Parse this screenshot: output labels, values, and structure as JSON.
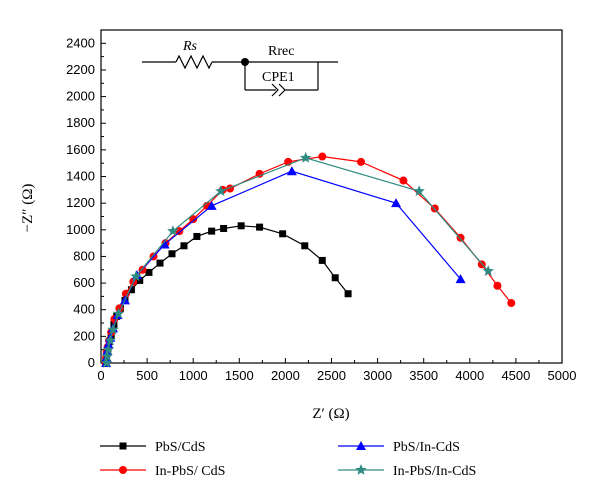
{
  "chart_data": {
    "type": "scatter",
    "xlabel": "Z′ (Ω)",
    "ylabel": "−Z″ (Ω)",
    "xlim": [
      0,
      5000
    ],
    "ylim": [
      0,
      2500
    ],
    "x_ticks": [
      0,
      500,
      1000,
      1500,
      2000,
      2500,
      3000,
      3500,
      4000,
      4500,
      5000
    ],
    "y_ticks": [
      0,
      200,
      400,
      600,
      800,
      1000,
      1200,
      1400,
      1600,
      1800,
      2000,
      2200,
      2400
    ],
    "grid": false,
    "legend_position": "bottom",
    "series": [
      {
        "name": "PbS/CdS",
        "color": "#000000",
        "marker": "square",
        "points": [
          [
            50,
            0
          ],
          [
            58,
            35
          ],
          [
            65,
            70
          ],
          [
            75,
            110
          ],
          [
            90,
            160
          ],
          [
            110,
            210
          ],
          [
            140,
            290
          ],
          [
            170,
            350
          ],
          [
            210,
            410
          ],
          [
            260,
            470
          ],
          [
            330,
            550
          ],
          [
            420,
            620
          ],
          [
            520,
            680
          ],
          [
            640,
            750
          ],
          [
            770,
            820
          ],
          [
            900,
            880
          ],
          [
            1040,
            950
          ],
          [
            1200,
            990
          ],
          [
            1330,
            1010
          ],
          [
            1520,
            1030
          ],
          [
            1720,
            1020
          ],
          [
            1970,
            970
          ],
          [
            2210,
            880
          ],
          [
            2400,
            770
          ],
          [
            2540,
            640
          ],
          [
            2680,
            520
          ]
        ]
      },
      {
        "name": "In-PbS/ CdS",
        "color": "#ff0000",
        "marker": "circle",
        "points": [
          [
            50,
            0
          ],
          [
            55,
            40
          ],
          [
            62,
            80
          ],
          [
            72,
            120
          ],
          [
            88,
            170
          ],
          [
            110,
            230
          ],
          [
            145,
            330
          ],
          [
            200,
            410
          ],
          [
            270,
            520
          ],
          [
            350,
            610
          ],
          [
            450,
            700
          ],
          [
            570,
            800
          ],
          [
            700,
            900
          ],
          [
            850,
            990
          ],
          [
            1000,
            1080
          ],
          [
            1150,
            1180
          ],
          [
            1320,
            1300
          ],
          [
            1400,
            1310
          ],
          [
            1720,
            1420
          ],
          [
            2030,
            1510
          ],
          [
            2400,
            1550
          ],
          [
            2820,
            1510
          ],
          [
            3280,
            1370
          ],
          [
            3620,
            1160
          ],
          [
            3900,
            940
          ],
          [
            4130,
            740
          ],
          [
            4300,
            580
          ],
          [
            4450,
            450
          ]
        ]
      },
      {
        "name": "PbS/In-CdS",
        "color": "#0000ff",
        "marker": "triangle",
        "points": [
          [
            55,
            0
          ],
          [
            60,
            40
          ],
          [
            68,
            90
          ],
          [
            80,
            140
          ],
          [
            100,
            190
          ],
          [
            130,
            260
          ],
          [
            180,
            360
          ],
          [
            260,
            470
          ],
          [
            390,
            660
          ],
          [
            690,
            890
          ],
          [
            1200,
            1180
          ],
          [
            2070,
            1440
          ],
          [
            3200,
            1200
          ],
          [
            3900,
            630
          ]
        ]
      },
      {
        "name": "In-PbS/In-CdS",
        "color": "#2e8b82",
        "marker": "star",
        "points": [
          [
            60,
            0
          ],
          [
            68,
            50
          ],
          [
            80,
            100
          ],
          [
            100,
            170
          ],
          [
            130,
            250
          ],
          [
            190,
            370
          ],
          [
            380,
            650
          ],
          [
            780,
            990
          ],
          [
            1300,
            1290
          ],
          [
            2220,
            1540
          ],
          [
            3450,
            1290
          ],
          [
            4200,
            690
          ]
        ]
      }
    ],
    "annotations": {
      "inset_circuit": {
        "resistor_1": "Rs",
        "resistor_2": "Rrec",
        "element_3": "CPE1"
      }
    }
  }
}
